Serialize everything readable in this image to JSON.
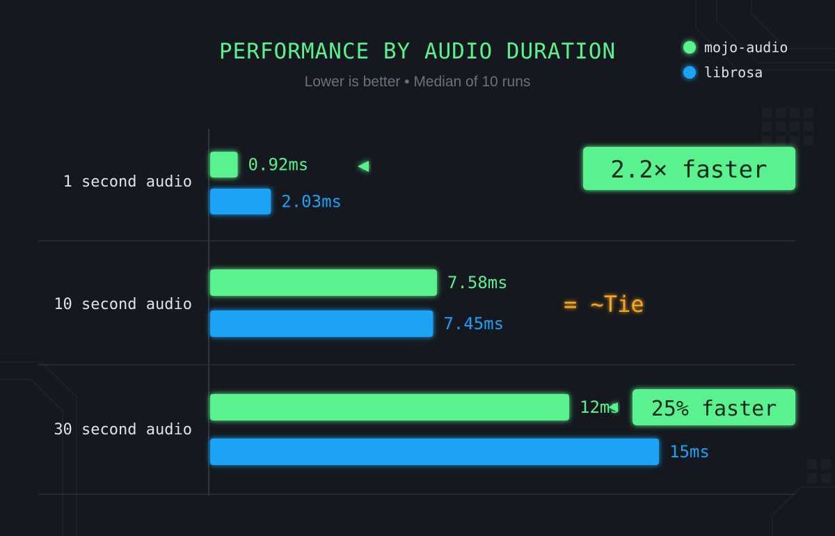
{
  "colors": {
    "mojo": "#5af28f",
    "librosa": "#1aa3f5",
    "tie": "#f5a623",
    "divider": "#2b3038",
    "axis": "#3a3f48"
  },
  "chart_data": {
    "type": "bar",
    "orientation": "horizontal",
    "title": "PERFORMANCE BY AUDIO DURATION",
    "subtitle": "Lower is better • Median of 10 runs",
    "legend_position": "top-right",
    "categories": [
      "1 second audio",
      "10 second audio",
      "30 second audio"
    ],
    "series": [
      {
        "name": "mojo-audio",
        "values": [
          0.92,
          7.58,
          12
        ],
        "labels": [
          "0.92ms",
          "7.58ms",
          "12ms"
        ]
      },
      {
        "name": "librosa",
        "values": [
          2.03,
          7.45,
          15
        ],
        "labels": [
          "2.03ms",
          "7.45ms",
          "15ms"
        ]
      }
    ],
    "unit": "ms",
    "xlim": [
      0,
      15
    ],
    "annotations": [
      {
        "category": 0,
        "text": "2.2× faster",
        "type": "callout"
      },
      {
        "category": 1,
        "text": "= ~Tie",
        "type": "tie"
      },
      {
        "category": 2,
        "text": "25% faster",
        "type": "callout"
      }
    ]
  }
}
